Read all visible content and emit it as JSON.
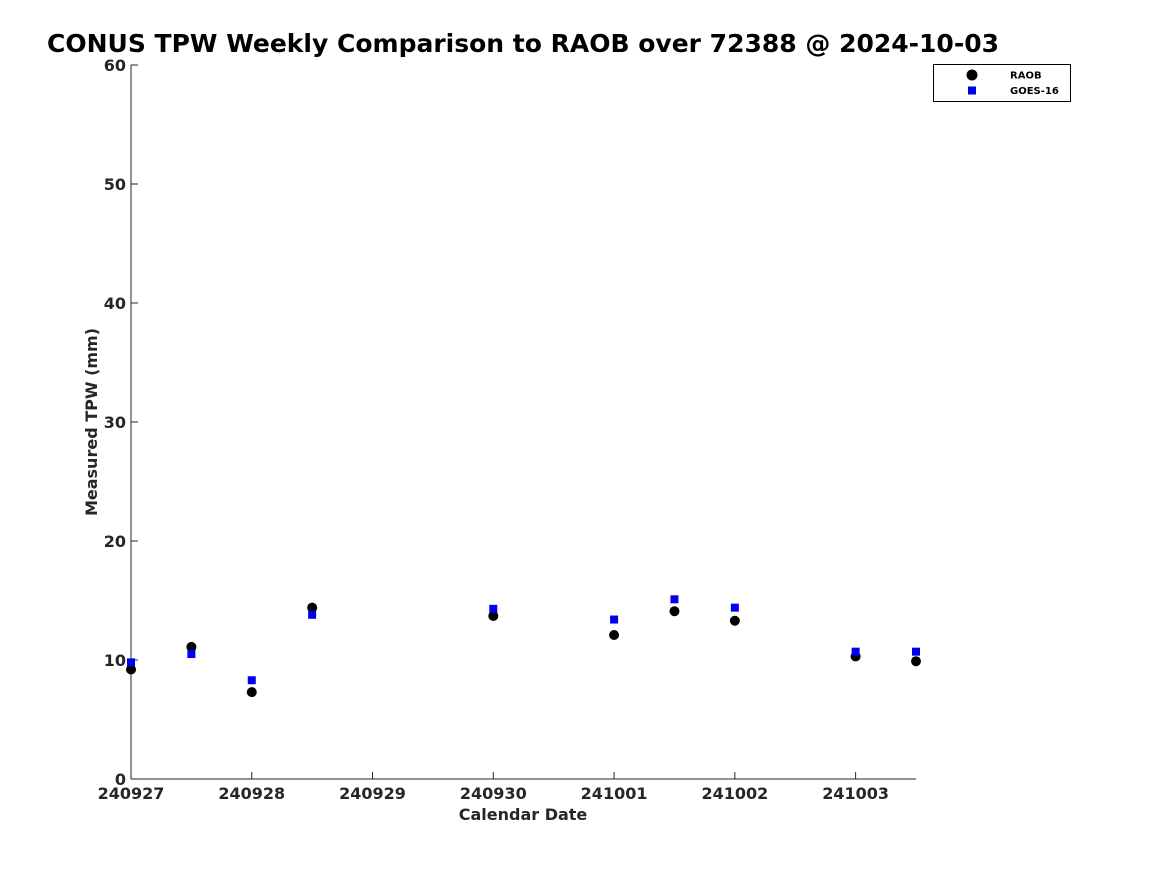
{
  "chart_data": {
    "type": "scatter",
    "title": "CONUS TPW Weekly Comparison to RAOB over 72388 @ 2024-10-03",
    "xlabel": "Calendar Date",
    "ylabel": "Measured TPW (mm)",
    "xlim": [
      "2024-09-27",
      "2024-10-03 12:00"
    ],
    "ylim": [
      0,
      60
    ],
    "x_ticks": [
      {
        "x": "2024-09-27",
        "label": "240927"
      },
      {
        "x": "2024-09-28",
        "label": "240928"
      },
      {
        "x": "2024-09-29",
        "label": "240929"
      },
      {
        "x": "2024-09-30",
        "label": "240930"
      },
      {
        "x": "2024-10-01",
        "label": "241001"
      },
      {
        "x": "2024-10-02",
        "label": "241002"
      },
      {
        "x": "2024-10-03",
        "label": "241003"
      }
    ],
    "y_ticks": [
      0,
      10,
      20,
      30,
      40,
      50,
      60
    ],
    "grid": false,
    "legend_position": "top-right",
    "series": [
      {
        "name": "RAOB",
        "marker": "circle",
        "color": "#000000",
        "points": [
          {
            "x": "2024-09-27 00:00",
            "y": 9.2
          },
          {
            "x": "2024-09-27 12:00",
            "y": 11.1
          },
          {
            "x": "2024-09-28 00:00",
            "y": 7.3
          },
          {
            "x": "2024-09-28 12:00",
            "y": 14.4
          },
          {
            "x": "2024-09-30 00:00",
            "y": 13.7
          },
          {
            "x": "2024-10-01 00:00",
            "y": 12.1
          },
          {
            "x": "2024-10-01 12:00",
            "y": 14.1
          },
          {
            "x": "2024-10-02 00:00",
            "y": 13.3
          },
          {
            "x": "2024-10-03 00:00",
            "y": 10.3
          },
          {
            "x": "2024-10-03 12:00",
            "y": 9.9
          }
        ]
      },
      {
        "name": "GOES-16",
        "marker": "square",
        "color": "#0000ee",
        "points": [
          {
            "x": "2024-09-27 00:00",
            "y": 9.8
          },
          {
            "x": "2024-09-27 12:00",
            "y": 10.5
          },
          {
            "x": "2024-09-28 00:00",
            "y": 8.3
          },
          {
            "x": "2024-09-28 12:00",
            "y": 13.8
          },
          {
            "x": "2024-09-30 00:00",
            "y": 14.3
          },
          {
            "x": "2024-10-01 00:00",
            "y": 13.4
          },
          {
            "x": "2024-10-01 12:00",
            "y": 15.1
          },
          {
            "x": "2024-10-02 00:00",
            "y": 14.4
          },
          {
            "x": "2024-10-03 00:00",
            "y": 10.7
          },
          {
            "x": "2024-10-03 12:00",
            "y": 10.7
          }
        ]
      }
    ]
  }
}
